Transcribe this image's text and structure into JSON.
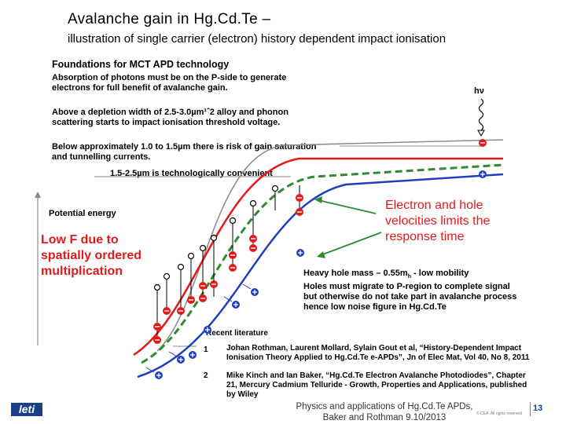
{
  "title": "Avalanche gain in Hg.Cd.Te –",
  "subtitle": "illustration of single carrier (electron) history dependent impact ionisation",
  "section_heading": "Foundations for MCT APD technology",
  "para1": [
    "Absorption of photons must be on the P-side to generate",
    "electrons for full benefit of avalanche gain."
  ],
  "para2": [
    "Above a depletion width of 2.5-3.0µm¹ˆ2 alloy and phonon",
    "scattering starts to impact ionisation threshold voltage."
  ],
  "para3": [
    "Below approximately 1.0 to 1.5µm there is risk of gain saturation",
    "and tunnelling currents."
  ],
  "convenient": "1.5-2.5µm is technologically convenient",
  "hv_label": "hν",
  "potential_energy": "Potential energy",
  "low_f": [
    "Low F due to",
    "spatially ordered",
    "multiplication"
  ],
  "electron_hole": [
    "Electron and hole",
    "velocities limits the",
    "response time"
  ],
  "heavy_hole": [
    "Heavy hole mass – 0.55m",
    "Holes must migrate to P-region to complete signal",
    "but otherwise do not take part in avalanche process",
    "hence low noise figure in Hg.Cd.Te"
  ],
  "heavy_hole_sub": "h",
  "heavy_hole_tail": " - low mobility",
  "recent_literature": "Recent literature",
  "references": [
    {
      "num": "1",
      "lines": [
        "Johan Rothman, Laurent Mollard, Sylain Gout et al, “History-Dependent Impact",
        "Ionisation Theory Applied to Hg.Cd.Te e-APDs”, Jn of Elec Mat, Vol 40, No 8, 2011"
      ]
    },
    {
      "num": "2",
      "lines": [
        "Mike Kinch and Ian Baker, “Hg.Cd.Te Electron Avalanche Photodiodes”, Chapter",
        "21, Mercury Cadmium Telluride - Growth, Properties and Applications, published",
        "by Wiley"
      ]
    }
  ],
  "footer_lines": [
    "Physics and applications of Hg.Cd.Te APDs,",
    "Baker and Rothman 9.10/2013"
  ],
  "page_number": "13",
  "copyright": "© CEA. All rights reserved",
  "logo_text": "leti",
  "colors": {
    "red": "#e41a1a",
    "green": "#2e8b2e",
    "blue": "#1f3fbf",
    "gray": "#8a8a8a",
    "accent": "#1a3f8a"
  }
}
